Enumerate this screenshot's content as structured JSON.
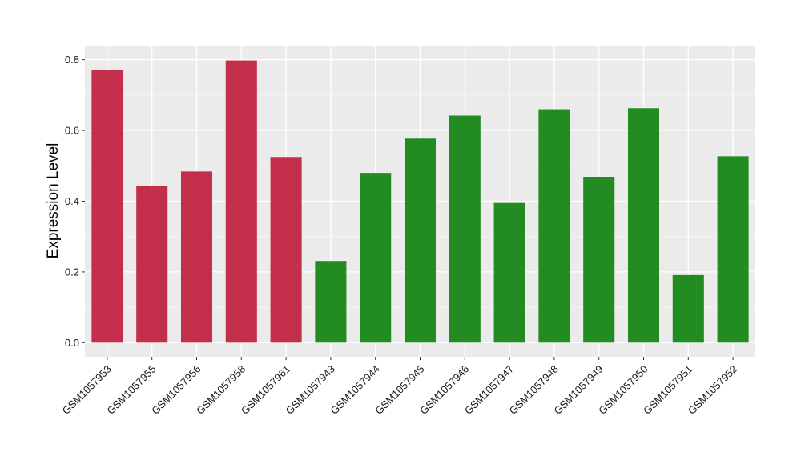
{
  "chart_data": {
    "type": "bar",
    "title": "",
    "xlabel": "",
    "ylabel": "Expression Level",
    "ylim": [
      -0.04,
      0.84
    ],
    "yticks": [
      0.0,
      0.2,
      0.4,
      0.6,
      0.8
    ],
    "ytick_labels": [
      "0.0",
      "0.2",
      "0.4",
      "0.6",
      "0.8"
    ],
    "grid": true,
    "legend": "none",
    "panel_background": "#EBEBEB",
    "grid_color": "#FFFFFF",
    "categories": [
      "GSM1057953",
      "GSM1057955",
      "GSM1057956",
      "GSM1057958",
      "GSM1057961",
      "GSM1057943",
      "GSM1057944",
      "GSM1057945",
      "GSM1057946",
      "GSM1057947",
      "GSM1057948",
      "GSM1057949",
      "GSM1057950",
      "GSM1057951",
      "GSM1057952"
    ],
    "values": [
      0.771,
      0.444,
      0.484,
      0.798,
      0.525,
      0.231,
      0.48,
      0.577,
      0.642,
      0.395,
      0.66,
      0.469,
      0.663,
      0.191,
      0.527
    ],
    "group_colors": [
      "#C32F4B",
      "#C32F4B",
      "#C32F4B",
      "#C32F4B",
      "#C32F4B",
      "#228B22",
      "#228B22",
      "#228B22",
      "#228B22",
      "#228B22",
      "#228B22",
      "#228B22",
      "#228B22",
      "#228B22",
      "#228B22"
    ]
  }
}
